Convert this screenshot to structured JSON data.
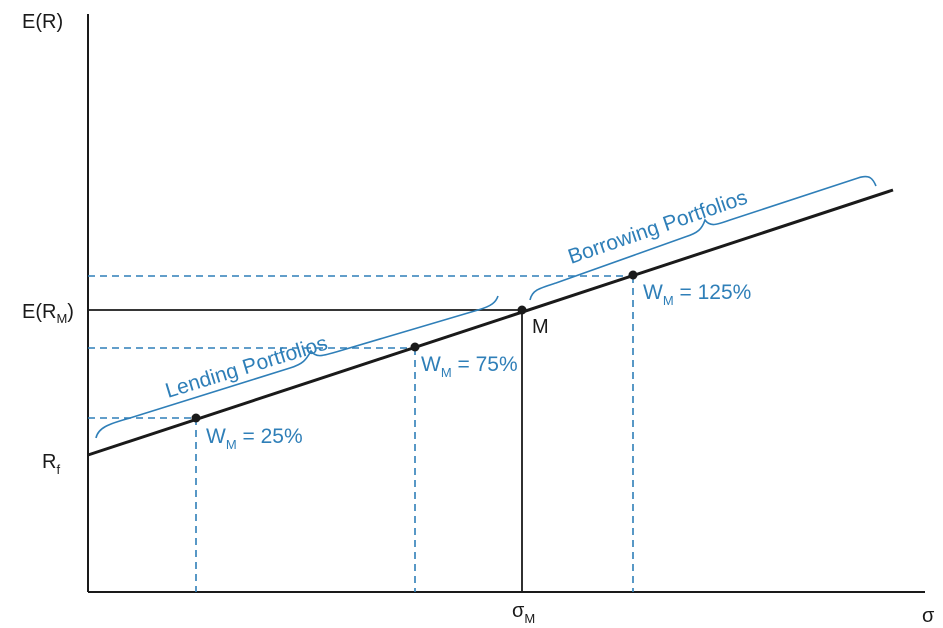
{
  "diagram": {
    "axes": {
      "y_label": "E(R)",
      "x_label": "σ"
    },
    "y_ticks": {
      "market_return": {
        "main": "E(R",
        "sub": "M",
        "close": ")"
      },
      "risk_free": {
        "main": "R",
        "sub": "f"
      }
    },
    "x_ticks": {
      "market_sigma": {
        "main": "σ",
        "sub": "M"
      }
    },
    "market_point_label": "M",
    "portfolios": [
      {
        "w": "W",
        "sub": "M",
        "value": " = 25%"
      },
      {
        "w": "W",
        "sub": "M",
        "value": " = 75%"
      },
      {
        "w": "W",
        "sub": "M",
        "value": " = 125%"
      }
    ],
    "regions": {
      "lending": "Lending Portfolios",
      "borrowing": "Borrowing Portfolios"
    },
    "colors": {
      "line": "#1a1a1a",
      "accent": "#2f7fb8"
    }
  }
}
